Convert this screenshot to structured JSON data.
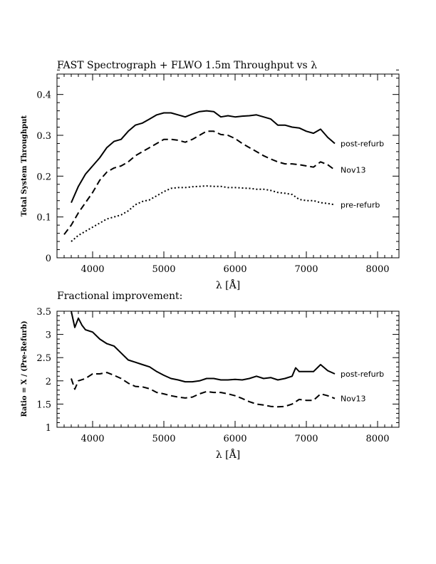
{
  "chart_data": [
    {
      "type": "line",
      "title": "FAST Spectrograph + FLWO 1.5m Throughput vs λ",
      "xlabel": "λ [Å]",
      "ylabel": "Total System Throughput",
      "xlim": [
        3500,
        8300
      ],
      "ylim": [
        0,
        0.45
      ],
      "xticks": [
        4000,
        5000,
        6000,
        7000,
        8000
      ],
      "xtick_labels": [
        "4000",
        "5000",
        "6000",
        "7000",
        "8000"
      ],
      "yticks": [
        0,
        0.1,
        0.2,
        0.3,
        0.4
      ],
      "ytick_labels": [
        "0",
        "0.1",
        "0.2",
        "0.3",
        "0.4"
      ],
      "grid": false,
      "series": [
        {
          "name": "post-refurb",
          "style": "solid",
          "x": [
            3700,
            3800,
            3900,
            4000,
            4100,
            4200,
            4300,
            4400,
            4500,
            4600,
            4700,
            4800,
            4900,
            5000,
            5100,
            5200,
            5300,
            5400,
            5500,
            5600,
            5700,
            5800,
            5900,
            6000,
            6100,
            6200,
            6300,
            6400,
            6500,
            6600,
            6700,
            6800,
            6900,
            7000,
            7100,
            7200,
            7300,
            7400
          ],
          "y": [
            0.135,
            0.175,
            0.205,
            0.225,
            0.245,
            0.27,
            0.285,
            0.29,
            0.31,
            0.325,
            0.33,
            0.34,
            0.35,
            0.355,
            0.355,
            0.35,
            0.345,
            0.352,
            0.358,
            0.36,
            0.358,
            0.345,
            0.348,
            0.345,
            0.347,
            0.348,
            0.35,
            0.345,
            0.34,
            0.325,
            0.325,
            0.32,
            0.318,
            0.31,
            0.305,
            0.315,
            0.295,
            0.28
          ]
        },
        {
          "name": "Nov13",
          "style": "dashed",
          "x": [
            3600,
            3700,
            3800,
            3900,
            4000,
            4100,
            4200,
            4300,
            4400,
            4500,
            4600,
            4700,
            4800,
            4900,
            5000,
            5100,
            5200,
            5300,
            5400,
            5500,
            5600,
            5700,
            5800,
            5900,
            6000,
            6100,
            6200,
            6300,
            6400,
            6500,
            6600,
            6700,
            6800,
            6900,
            7000,
            7100,
            7200,
            7300,
            7400
          ],
          "y": [
            0.057,
            0.08,
            0.11,
            0.135,
            0.16,
            0.19,
            0.21,
            0.22,
            0.225,
            0.235,
            0.25,
            0.26,
            0.27,
            0.28,
            0.29,
            0.29,
            0.288,
            0.283,
            0.29,
            0.3,
            0.31,
            0.31,
            0.302,
            0.3,
            0.292,
            0.28,
            0.27,
            0.26,
            0.25,
            0.242,
            0.235,
            0.23,
            0.23,
            0.228,
            0.225,
            0.222,
            0.235,
            0.228,
            0.215
          ]
        },
        {
          "name": "pre-refurb",
          "style": "dotted",
          "x": [
            3700,
            3800,
            3900,
            4000,
            4100,
            4200,
            4300,
            4400,
            4500,
            4600,
            4700,
            4800,
            4900,
            5000,
            5100,
            5200,
            5300,
            5400,
            5500,
            5600,
            5700,
            5800,
            5900,
            6000,
            6100,
            6200,
            6300,
            6400,
            6500,
            6600,
            6700,
            6800,
            6900,
            7000,
            7100,
            7200,
            7300,
            7400
          ],
          "y": [
            0.04,
            0.055,
            0.065,
            0.075,
            0.085,
            0.095,
            0.1,
            0.105,
            0.115,
            0.13,
            0.138,
            0.142,
            0.152,
            0.162,
            0.17,
            0.172,
            0.172,
            0.174,
            0.175,
            0.176,
            0.175,
            0.175,
            0.172,
            0.172,
            0.171,
            0.17,
            0.168,
            0.168,
            0.165,
            0.16,
            0.158,
            0.155,
            0.143,
            0.14,
            0.14,
            0.135,
            0.133,
            0.13
          ]
        }
      ]
    },
    {
      "type": "line",
      "title": "Fractional improvement:",
      "xlabel": "λ [Å]",
      "ylabel": "Ratio = X / (Pre-Refurb)",
      "xlim": [
        3500,
        8300
      ],
      "ylim": [
        1,
        3.5
      ],
      "xticks": [
        4000,
        5000,
        6000,
        7000,
        8000
      ],
      "xtick_labels": [
        "4000",
        "5000",
        "6000",
        "7000",
        "8000"
      ],
      "yticks": [
        1,
        1.5,
        2,
        2.5,
        3,
        3.5
      ],
      "ytick_labels": [
        "1",
        "1.5",
        "2",
        "2.5",
        "3",
        "3.5"
      ],
      "grid": false,
      "series": [
        {
          "name": "post-refurb",
          "style": "solid",
          "x": [
            3700,
            3750,
            3800,
            3850,
            3900,
            4000,
            4100,
            4200,
            4300,
            4400,
            4500,
            4600,
            4700,
            4800,
            4900,
            5000,
            5100,
            5200,
            5300,
            5400,
            5500,
            5600,
            5700,
            5800,
            5900,
            6000,
            6100,
            6200,
            6300,
            6400,
            6500,
            6600,
            6700,
            6800,
            6850,
            6900,
            7000,
            7100,
            7200,
            7300,
            7400
          ],
          "y": [
            3.5,
            3.15,
            3.35,
            3.2,
            3.1,
            3.05,
            2.9,
            2.8,
            2.75,
            2.6,
            2.45,
            2.4,
            2.35,
            2.3,
            2.2,
            2.12,
            2.05,
            2.02,
            1.98,
            1.98,
            2.0,
            2.05,
            2.05,
            2.02,
            2.02,
            2.03,
            2.02,
            2.05,
            2.1,
            2.05,
            2.07,
            2.02,
            2.05,
            2.1,
            2.28,
            2.2,
            2.2,
            2.2,
            2.35,
            2.22,
            2.15
          ]
        },
        {
          "name": "Nov13",
          "style": "dashed",
          "x": [
            3700,
            3750,
            3800,
            3900,
            4000,
            4100,
            4200,
            4300,
            4400,
            4500,
            4600,
            4700,
            4800,
            4900,
            5000,
            5100,
            5200,
            5300,
            5400,
            5500,
            5600,
            5700,
            5800,
            5900,
            6000,
            6100,
            6200,
            6300,
            6400,
            6500,
            6600,
            6700,
            6800,
            6900,
            7000,
            7100,
            7200,
            7300,
            7400
          ],
          "y": [
            2.05,
            1.82,
            2.0,
            2.05,
            2.15,
            2.15,
            2.18,
            2.12,
            2.05,
            1.95,
            1.88,
            1.87,
            1.83,
            1.75,
            1.72,
            1.68,
            1.65,
            1.63,
            1.65,
            1.72,
            1.77,
            1.75,
            1.75,
            1.72,
            1.68,
            1.62,
            1.55,
            1.5,
            1.48,
            1.45,
            1.44,
            1.45,
            1.5,
            1.6,
            1.58,
            1.58,
            1.72,
            1.68,
            1.62
          ]
        }
      ]
    }
  ]
}
